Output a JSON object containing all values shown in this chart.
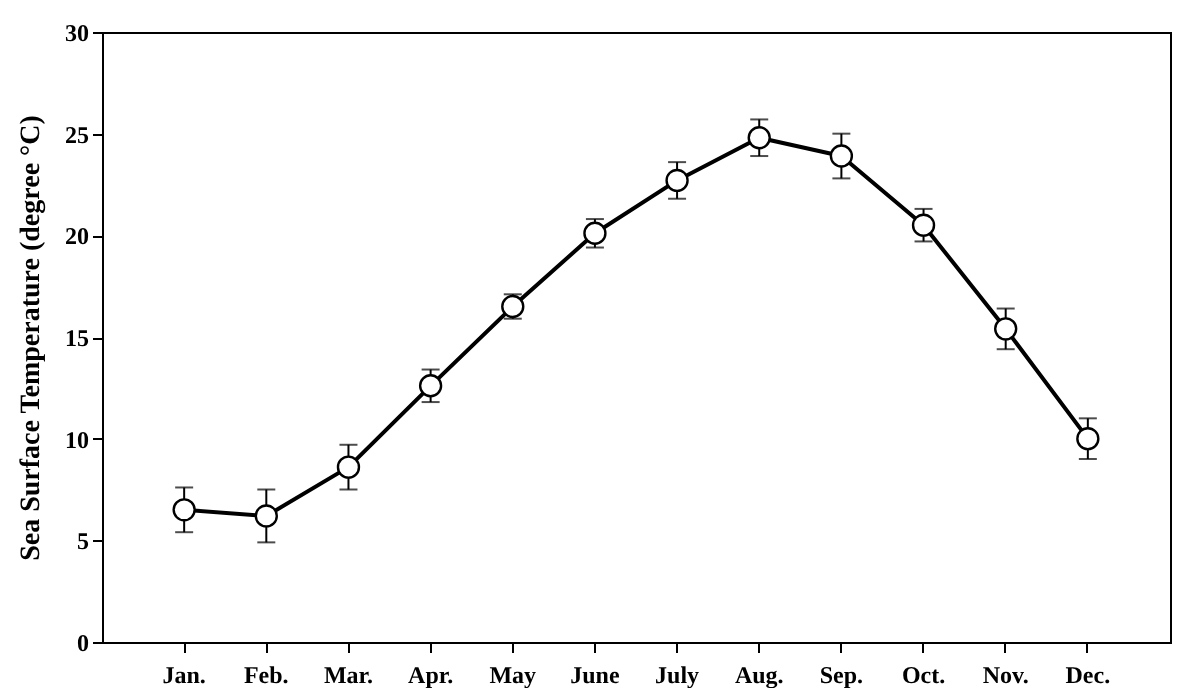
{
  "chart_data": {
    "type": "line",
    "ylabel": "Sea Surface Temperature (degree °C)",
    "categories": [
      "Jan.",
      "Feb.",
      "Mar.",
      "Apr.",
      "May",
      "June",
      "July",
      "Aug.",
      "Sep.",
      "Oct.",
      "Nov.",
      "Dec."
    ],
    "series": [
      {
        "color": "#000000",
        "values": [
          6.5,
          6.2,
          8.6,
          12.6,
          16.5,
          20.1,
          22.7,
          24.8,
          23.9,
          20.5,
          15.4,
          10.0
        ],
        "errors": [
          1.1,
          1.3,
          1.1,
          0.8,
          0.6,
          0.7,
          0.9,
          0.9,
          1.1,
          0.8,
          1.0,
          1.0
        ]
      }
    ],
    "ylim": [
      0,
      30
    ],
    "yticks": [
      0,
      5,
      10,
      15,
      20,
      25,
      30
    ],
    "grid": false,
    "marker": "circle",
    "line_style": "solid"
  }
}
